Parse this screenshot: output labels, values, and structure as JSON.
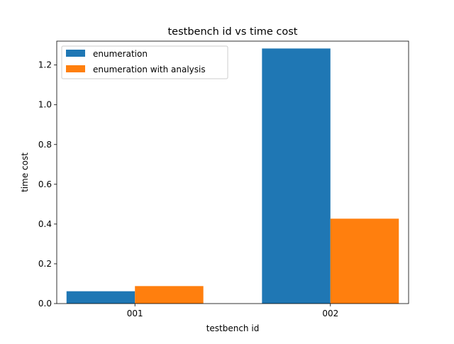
{
  "chart_data": {
    "type": "bar",
    "title": "testbench id vs time cost",
    "xlabel": "testbench id",
    "ylabel": "time cost",
    "categories": [
      "001",
      "002"
    ],
    "series": [
      {
        "name": "enumeration",
        "color": "#1f77b4",
        "values": [
          0.062,
          1.283
        ]
      },
      {
        "name": "enumeration with analysis",
        "color": "#ff7f0e",
        "values": [
          0.088,
          0.427
        ]
      }
    ],
    "ylim": [
      0,
      1.32
    ],
    "yticks": [
      "0.0",
      "0.2",
      "0.4",
      "0.6",
      "0.8",
      "1.0",
      "1.2"
    ],
    "grid": false,
    "legend_position": "top-left"
  }
}
